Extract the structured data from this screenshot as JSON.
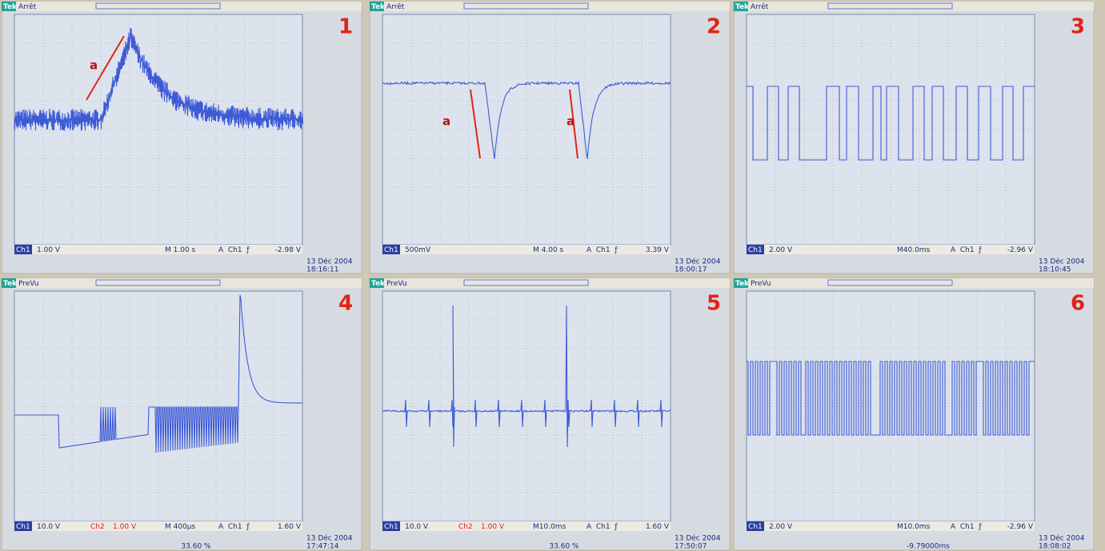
{
  "panels": [
    {
      "brand": "Tek",
      "mode": "Arrêt",
      "number": "1",
      "annotations": [
        "a"
      ],
      "status": {
        "ch1": "Ch1",
        "ch1_scale": "1.00 V",
        "timebase": "M 1.00 s",
        "trigger": "A  Ch1  ƒ",
        "trigger_level": "-2.98 V"
      },
      "date": "13 Déc 2004",
      "time": "18:16:11"
    },
    {
      "brand": "Tek",
      "mode": "Arrêt",
      "number": "2",
      "annotations": [
        "a",
        "a"
      ],
      "status": {
        "ch1": "Ch1",
        "ch1_scale": "500mV",
        "timebase": "M 4.00 s",
        "trigger": "A  Ch1  ƒ",
        "trigger_level": "3.39 V"
      },
      "date": "13 Déc 2004",
      "time": "18:00:17"
    },
    {
      "brand": "Tek",
      "mode": "Arrêt",
      "number": "3",
      "annotations": [],
      "status": {
        "ch1": "Ch1",
        "ch1_scale": "2.00 V",
        "timebase": "M40.0ms",
        "trigger": "A  Ch1  ƒ",
        "trigger_level": "-2.96 V"
      },
      "date": "13 Déc 2004",
      "time": "18:10:45"
    },
    {
      "brand": "Tek",
      "mode": "PreVu",
      "number": "4",
      "annotations": [],
      "status": {
        "ch1": "Ch1",
        "ch1_scale": "10.0 V",
        "ch2": "Ch2",
        "ch2_scale": "1.00 V",
        "timebase": "M 400µs",
        "trigger": "A  Ch1  ƒ",
        "trigger_level": "1.60 V"
      },
      "date": "13 Déc 2004",
      "time": "17:47:14",
      "footer": "33.60 %"
    },
    {
      "brand": "Tek",
      "mode": "PreVu",
      "number": "5",
      "annotations": [],
      "status": {
        "ch1": "Ch1",
        "ch1_scale": "10.0 V",
        "ch2": "Ch2",
        "ch2_scale": "1.00 V",
        "timebase": "M10.0ms",
        "trigger": "A  Ch1  ƒ",
        "trigger_level": "1.60 V"
      },
      "date": "13 Déc 2004",
      "time": "17:50:07",
      "footer": "33.60 %"
    },
    {
      "brand": "Tek",
      "mode": "PreVu",
      "number": "6",
      "annotations": [],
      "status": {
        "ch1": "Ch1",
        "ch1_scale": "2.00 V",
        "timebase": "M10.0ms",
        "trigger": "A  Ch1  ƒ",
        "trigger_level": "-2.96 V"
      },
      "date": "13 Déc 2004",
      "time": "18:08:02",
      "footer": "-9.79000ms"
    }
  ]
}
